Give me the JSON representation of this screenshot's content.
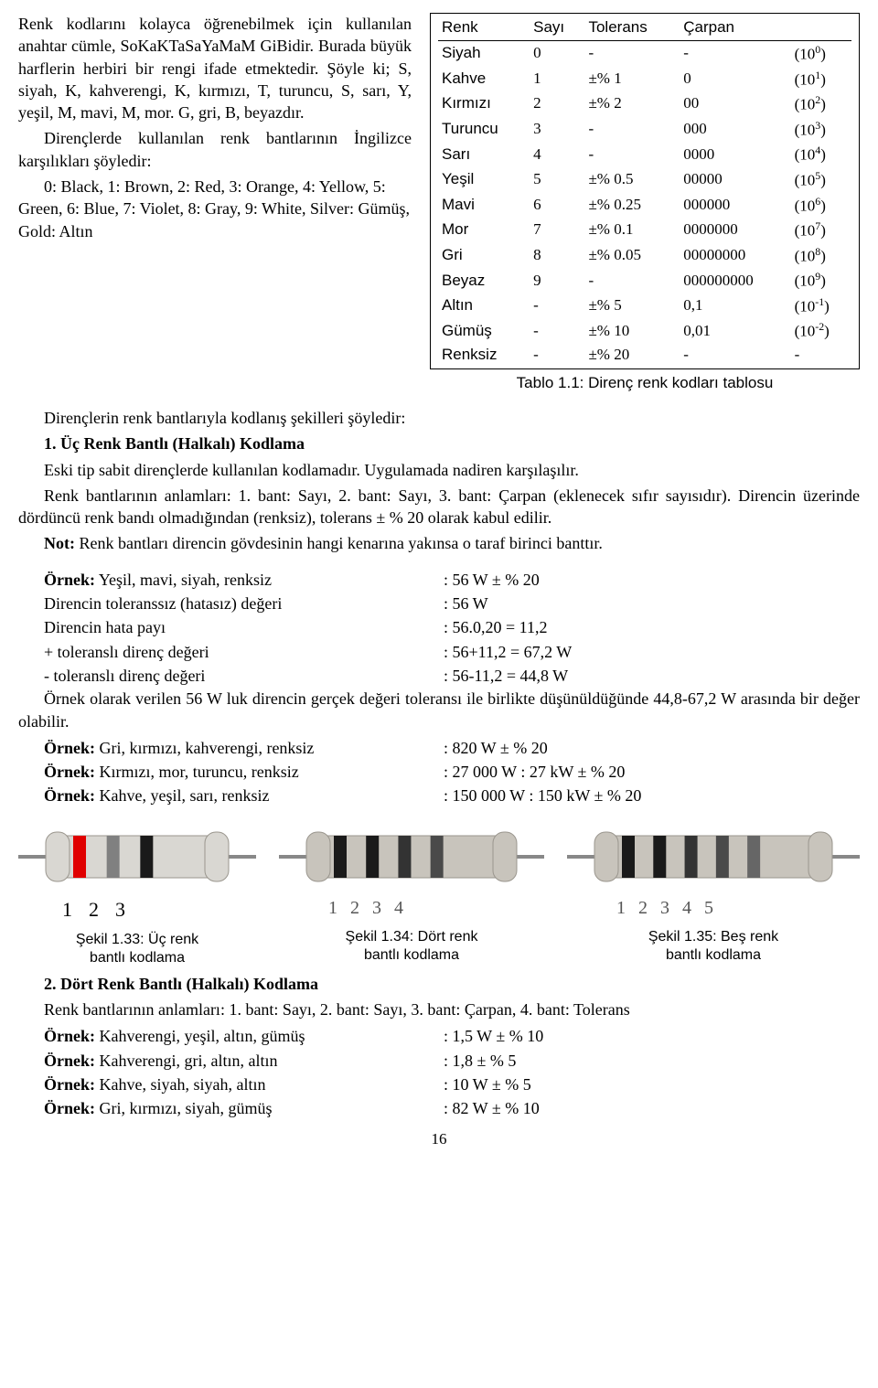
{
  "intro": {
    "p1": "Renk kodlarını kolayca öğrenebilmek için kullanılan anahtar cümle, SoKaKTaSaYaMaM GiBidir. Burada büyük harflerin herbiri bir rengi ifade etmektedir. Şöyle ki; S, siyah, K, kahverengi, K, kırmızı, T, turuncu, S, sarı, Y, yeşil, M, mavi, M, mor. G, gri, B, beyazdır.",
    "p2": "Dirençlerde kullanılan renk bantlarının İngilizce karşılıkları şöyledir:",
    "p3": "0: Black, 1: Brown, 2: Red, 3: Orange, 4: Yellow, 5: Green, 6: Blue, 7: Violet, 8: Gray, 9: White, Silver: Gümüş, Gold: Altın"
  },
  "table": {
    "headers": [
      "Renk",
      "Sayı",
      "Tolerans",
      "Çarpan"
    ],
    "rows": [
      [
        "Siyah",
        "0",
        "-",
        "-",
        "0"
      ],
      [
        "Kahve",
        "1",
        "±% 1",
        "0",
        "1"
      ],
      [
        "Kırmızı",
        "2",
        "±% 2",
        "00",
        "2"
      ],
      [
        "Turuncu",
        "3",
        "-",
        "000",
        "3"
      ],
      [
        "Sarı",
        "4",
        "-",
        "0000",
        "4"
      ],
      [
        "Yeşil",
        "5",
        "±% 0.5",
        "00000",
        "5"
      ],
      [
        "Mavi",
        "6",
        "±% 0.25",
        "000000",
        "6"
      ],
      [
        "Mor",
        "7",
        "±% 0.1",
        "0000000",
        "7"
      ],
      [
        "Gri",
        "8",
        "±% 0.05",
        "00000000",
        "8"
      ],
      [
        "Beyaz",
        "9",
        "-",
        "000000000",
        "9"
      ],
      [
        "Altın",
        "-",
        "±% 5",
        "0,1",
        "-1"
      ],
      [
        "Gümüş",
        "-",
        "±% 10",
        "0,01",
        "-2"
      ],
      [
        "Renksiz",
        "-",
        "±% 20",
        "-",
        "-"
      ]
    ],
    "caption": "Tablo 1.1: Direnç renk kodları tablosu"
  },
  "body": {
    "h_intro": "Dirençlerin renk bantlarıyla kodlanış şekilleri şöyledir:",
    "h1": "1. Üç Renk Bantlı (Halkalı) Kodlama",
    "p4": "Eski tip sabit dirençlerde kullanılan kodlamadır. Uygulamada nadiren karşılaşılır.",
    "p5": "Renk bantlarının anlamları: 1. bant: Sayı, 2. bant: Sayı, 3. bant: Çarpan (eklenecek sıfır sayısıdır). Direncin üzerinde dördüncü renk bandı olmadığından (renksiz), tolerans ± % 20 olarak kabul edilir.",
    "note_label": "Not:",
    "note": " Renk bantları direncin gövdesinin hangi kenarına yakınsa o taraf birinci banttır."
  },
  "ex1": {
    "l1a": "Örnek: Yeşil, mavi, siyah, renksiz",
    "l1b": ": 56 W ± % 20",
    "l2a": "Direncin toleranssız (hatasız) değeri",
    "l2b": ": 56 W",
    "l3a": "Direncin hata payı",
    "l3b": ": 56.0,20 = 11,2",
    "l4a": "+ toleranslı direnç değeri",
    "l4b": ": 56+11,2 = 67,2 W",
    "l5a": "- toleranslı direnç değeri",
    "l5b": ": 56-11,2 = 44,8 W",
    "p6": "Örnek olarak verilen 56 W luk direncin gerçek değeri toleransı ile birlikte düşünüldüğünde 44,8-67,2 W arasında bir değer olabilir.",
    "l7a": "Örnek: Gri, kırmızı, kahverengi, renksiz",
    "l7b": ": 820 W ± % 20",
    "l8a": "Örnek: Kırmızı, mor, turuncu, renksiz",
    "l8b": ": 27 000 W : 27 kW ± % 20",
    "l9a": "Örnek: Kahve, yeşil, sarı, renksiz",
    "l9b": ": 150 000 W : 150 kW ± % 20"
  },
  "figs": {
    "f1_bands": [
      "#e00000",
      "#808080",
      "#1a1a1a"
    ],
    "f1_labels": [
      "1",
      "2",
      "3"
    ],
    "f1_cap1": "Şekil 1.33: Üç renk",
    "f1_cap2": "bantlı kodlama",
    "f2_bands": [
      "#1a1a1a",
      "#1a1a1a",
      "#333333",
      "#4a4a4a"
    ],
    "f2_labels": [
      "1",
      "2",
      "3",
      "4"
    ],
    "f2_cap1": "Şekil 1.34: Dört renk",
    "f2_cap2": "bantlı kodlama",
    "f3_bands": [
      "#1a1a1a",
      "#1a1a1a",
      "#333333",
      "#4a4a4a",
      "#666666"
    ],
    "f3_labels": [
      "1",
      "2",
      "3",
      "4",
      "5"
    ],
    "f3_cap1": "Şekil 1.35: Beş renk",
    "f3_cap2": "bantlı kodlama"
  },
  "sec2": {
    "h2": "2. Dört Renk Bantlı (Halkalı) Kodlama",
    "p7": "Renk bantlarının anlamları: 1. bant: Sayı, 2. bant: Sayı, 3. bant: Çarpan, 4. bant: Tolerans",
    "l1a": "Örnek: Kahverengi, yeşil, altın, gümüş",
    "l1b": ": 1,5 W ± % 10",
    "l2a": "Örnek: Kahverengi, gri, altın, altın",
    "l2b": ": 1,8 ± % 5",
    "l3a": "Örnek: Kahve, siyah, siyah, altın",
    "l3b": ": 10 W ± % 5",
    "l4a": "Örnek: Gri, kırmızı, siyah, gümüş",
    "l4b": ": 82 W ± % 10"
  },
  "page": "16"
}
